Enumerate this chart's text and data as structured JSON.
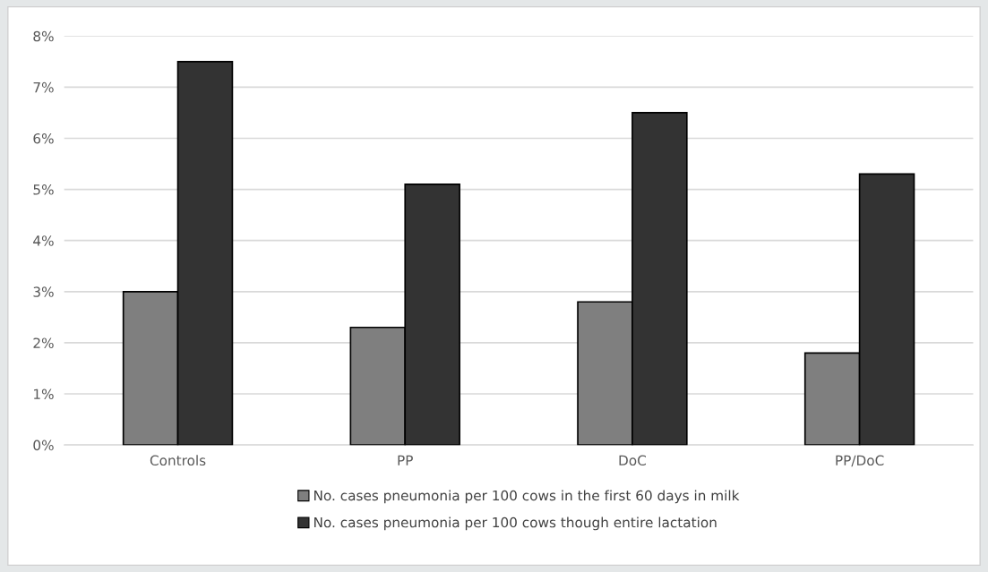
{
  "chart_data": {
    "type": "bar",
    "categories": [
      "Controls",
      "PP",
      "DoC",
      "PP/DoC"
    ],
    "series": [
      {
        "name": "No. cases pneumonia per 100 cows in the first 60 days in milk",
        "color": "#7f7f7f",
        "values": [
          3.0,
          2.3,
          2.8,
          1.8
        ]
      },
      {
        "name": "No. cases pneumonia per 100 cows though entire lactation",
        "color": "#333333",
        "values": [
          7.5,
          5.1,
          6.5,
          5.3
        ]
      }
    ],
    "ylim": [
      0,
      8
    ],
    "yticks": [
      {
        "value": 0,
        "label": "0%"
      },
      {
        "value": 1,
        "label": "1%"
      },
      {
        "value": 2,
        "label": "2%"
      },
      {
        "value": 3,
        "label": "3%"
      },
      {
        "value": 4,
        "label": "4%"
      },
      {
        "value": 5,
        "label": "5%"
      },
      {
        "value": 6,
        "label": "6%"
      },
      {
        "value": 7,
        "label": "7%"
      },
      {
        "value": 8,
        "label": "8%"
      }
    ],
    "grid": "y",
    "legend": "bottom"
  }
}
